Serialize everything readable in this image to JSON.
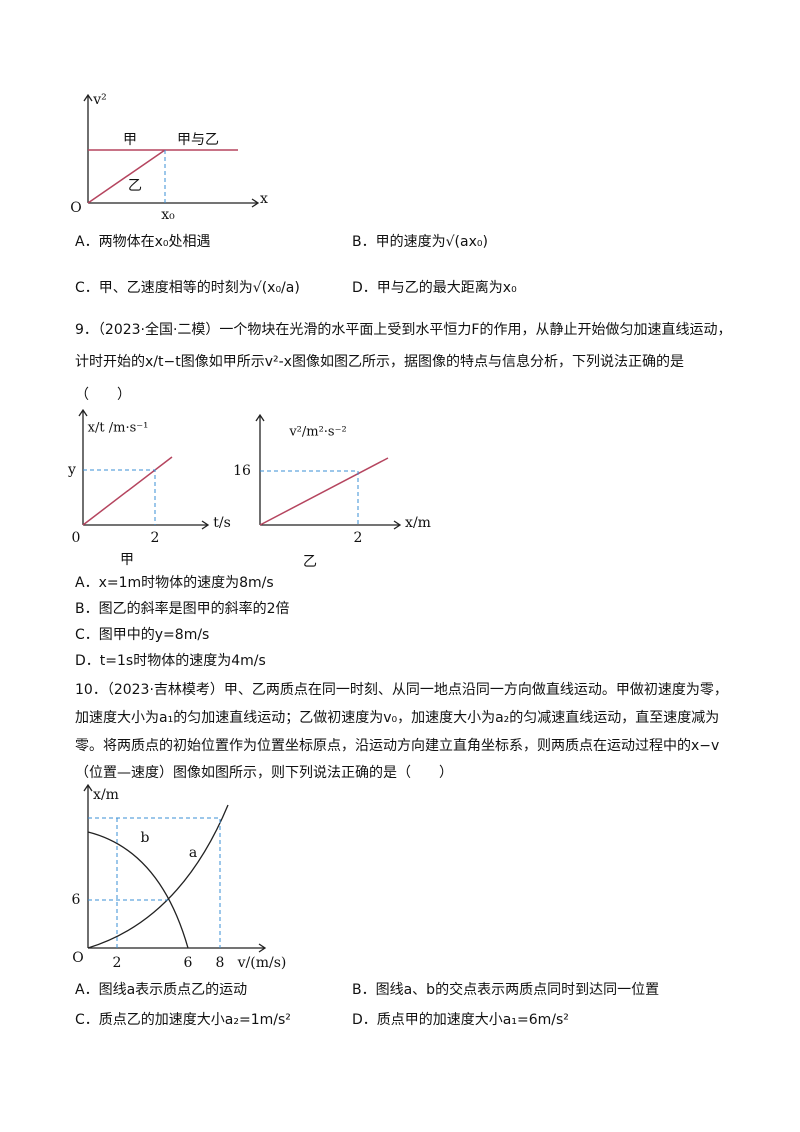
{
  "figure1": {
    "labels": [
      "v²",
      "甲",
      "甲与乙",
      "乙",
      "O",
      "x",
      "x₀"
    ]
  },
  "q8_options": [
    "A．两物体在x₀处相遇",
    "B．甲的速度为√(ax₀)",
    "C．甲、乙速度相等的时刻为√(x₀/a)",
    "D．甲与乙的最大距离为x₀"
  ],
  "q9": {
    "lines": [
      "9．（2023·全国·二模）一个物块在光滑的水平面上受到水平恒力F的作用，从静止开始做匀加速直线运动，",
      "计时开始的x/t−t图像如甲所示v²-x图像如图乙所示，据图像的特点与信息分析，下列说法正确的是",
      "（　　）"
    ],
    "figure_jia": {
      "y_label": "x/t /m·s⁻¹",
      "labels": [
        "y",
        "0",
        "2",
        "t/s"
      ],
      "caption": "甲"
    },
    "figure_yi": {
      "y_label": "v²/m²·s⁻²",
      "labels": [
        "16",
        "2",
        "x/m"
      ],
      "caption": "乙"
    },
    "options": [
      "A．x=1m时物体的速度为8m/s",
      "B．图乙的斜率是图甲的斜率的2倍",
      "C．图甲中的y=8m/s",
      "D．t=1s时物体的速度为4m/s"
    ]
  },
  "q10": {
    "lines": [
      "10．（2023·吉林模考）甲、乙两质点在同一时刻、从同一地点沿同一方向做直线运动。甲做初速度为零，",
      "加速度大小为a₁的匀加速直线运动；乙做初速度为v₀，加速度大小为a₂的匀减速直线运动，直至速度减为",
      "零。将两质点的初始位置作为位置坐标原点，沿运动方向建立直角坐标系，则两质点在运动过程中的x−v",
      "（位置—速度）图像如图所示，则下列说法正确的是（　　）"
    ],
    "figure": {
      "labels": [
        "x/m",
        "b",
        "a",
        "6",
        "O",
        "2",
        "6",
        "8",
        "v/(m/s)"
      ]
    },
    "options": [
      "A．图线a表示质点乙的运动",
      "B．图线a、b的交点表示两质点同时到达同一位置",
      "C．质点乙的加速度大小a₂=1m/s²",
      "D．质点甲的加速度大小a₁=6m/s²"
    ]
  }
}
